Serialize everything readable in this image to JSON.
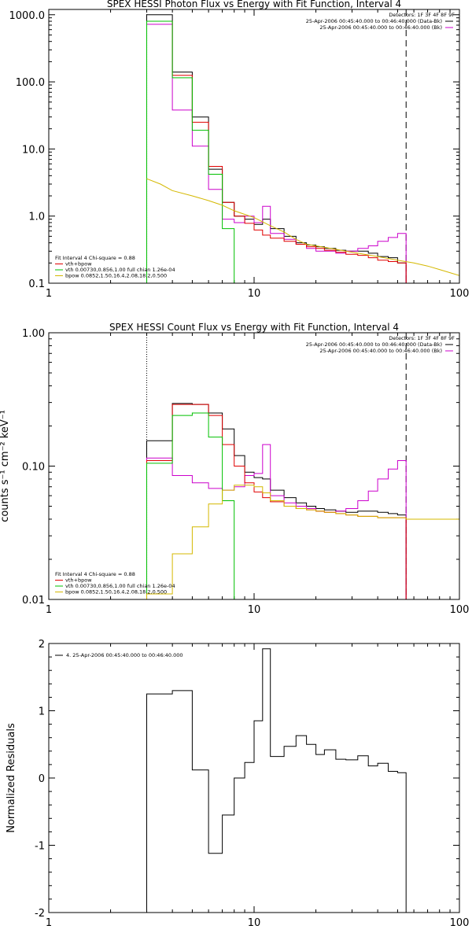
{
  "colors": {
    "data": "#000000",
    "total_fit": "#e00000",
    "vth": "#00c000",
    "bpow": "#d4b800",
    "background": "#cc00cc"
  },
  "detectors_label": "Detectors: 1F 3F 4F 8F 9F",
  "data_legend": [
    {
      "text": "25-Apr-2006 00:45:40.000 to 00:46:40.000 (Data-Bk)",
      "color": "#000000"
    },
    {
      "text": "25-Apr-2006 00:45:40.000 to 00:46:40.000 (Bk)",
      "color": "#cc00cc"
    }
  ],
  "fit_legend": [
    {
      "text": "Fit Interval 4    Chi-square = 0.88",
      "color": "#000000"
    },
    {
      "text": "vth+bpow",
      "color": "#e00000"
    },
    {
      "text": "vth 0.00730,0.856,1.00   full chian 1.26e-04",
      "color": "#00c000"
    },
    {
      "text": "bpow 0.0852,1.50,16.4,2.08,18.2,0.500",
      "color": "#d4b800"
    }
  ],
  "chart_data": [
    {
      "type": "line",
      "title": "SPEX HESSI Photon Flux vs Energy with Fit Function, Interval 4",
      "xscale": "log",
      "yscale": "log",
      "xlim": [
        1,
        100
      ],
      "ylim": [
        0.1,
        1200
      ],
      "xticks": [
        {
          "v": 1,
          "l": "1"
        },
        {
          "v": 10,
          "l": "10"
        },
        {
          "v": 100,
          "l": "100"
        }
      ],
      "yticks": [
        {
          "v": 0.1,
          "l": "0.1"
        },
        {
          "v": 1,
          "l": "1.0"
        },
        {
          "v": 10,
          "l": "10.0"
        },
        {
          "v": 100,
          "l": "100.0"
        },
        {
          "v": 1000,
          "l": "1000.0"
        }
      ],
      "ylabel": "",
      "edges": [
        3,
        4,
        5,
        6,
        7,
        8,
        9,
        10,
        11,
        12,
        14,
        16,
        18,
        20,
        22,
        25,
        28,
        32,
        36,
        40,
        45,
        50,
        55
      ],
      "vlines": [
        {
          "x": 3,
          "style": "dotted"
        },
        {
          "x": 55,
          "style": "dashed"
        }
      ],
      "series": [
        {
          "name": "Data-Bk",
          "color": "#000000",
          "kind": "step",
          "values": [
            1000,
            140,
            30,
            5,
            1.6,
            1.0,
            0.9,
            0.75,
            0.9,
            0.65,
            0.5,
            0.4,
            0.37,
            0.35,
            0.33,
            0.31,
            0.3,
            0.3,
            0.28,
            0.25,
            0.24,
            0.2
          ]
        },
        {
          "name": "Bk",
          "color": "#cc00cc",
          "kind": "step",
          "values": [
            720,
            38,
            11,
            2.5,
            0.9,
            0.8,
            1.0,
            0.8,
            1.4,
            0.55,
            0.45,
            0.38,
            0.33,
            0.3,
            0.3,
            0.28,
            0.3,
            0.33,
            0.36,
            0.42,
            0.48,
            0.55
          ]
        },
        {
          "name": "vth+bpow",
          "color": "#e00000",
          "kind": "step",
          "values": [
            800,
            125,
            25,
            5.5,
            1.6,
            1.0,
            0.78,
            0.62,
            0.52,
            0.47,
            0.42,
            0.38,
            0.35,
            0.33,
            0.31,
            0.29,
            0.27,
            0.26,
            0.24,
            0.22,
            0.21,
            0.2
          ]
        },
        {
          "name": "vth",
          "color": "#00c000",
          "kind": "step",
          "values": [
            800,
            115,
            19,
            4.2,
            0.65,
            0.1
          ]
        },
        {
          "name": "bpow",
          "color": "#d4b800",
          "kind": "curve",
          "x": [
            3,
            3.5,
            4,
            5,
            6,
            7,
            8,
            10,
            12,
            14,
            16,
            18,
            20,
            25,
            30,
            40,
            50,
            60,
            70,
            80,
            100
          ],
          "values": [
            3.6,
            3.0,
            2.4,
            2.0,
            1.7,
            1.45,
            1.2,
            0.95,
            0.72,
            0.58,
            0.45,
            0.38,
            0.36,
            0.32,
            0.29,
            0.25,
            0.22,
            0.2,
            0.18,
            0.16,
            0.13
          ]
        }
      ]
    },
    {
      "type": "line",
      "title": "SPEX HESSI Count Flux vs Energy with Fit Function, Interval 4",
      "xscale": "log",
      "yscale": "log",
      "xlim": [
        1,
        100
      ],
      "ylim": [
        0.01,
        1.0
      ],
      "xticks": [
        {
          "v": 1,
          "l": "1"
        },
        {
          "v": 10,
          "l": "10"
        },
        {
          "v": 100,
          "l": "100"
        }
      ],
      "yticks": [
        {
          "v": 0.01,
          "l": "0.01"
        },
        {
          "v": 0.1,
          "l": "0.10"
        },
        {
          "v": 1,
          "l": "1.00"
        }
      ],
      "ylabel": "counts s⁻¹ cm⁻² keV⁻¹",
      "edges": [
        3,
        4,
        5,
        6,
        7,
        8,
        9,
        10,
        11,
        12,
        14,
        16,
        18,
        20,
        22,
        25,
        28,
        32,
        36,
        40,
        45,
        50,
        55
      ],
      "vlines": [
        {
          "x": 3,
          "style": "dotted"
        },
        {
          "x": 55,
          "style": "dashed"
        }
      ],
      "series": [
        {
          "name": "Data-Bk",
          "color": "#000000",
          "kind": "step",
          "values": [
            0.155,
            0.295,
            0.29,
            0.25,
            0.19,
            0.12,
            0.09,
            0.082,
            0.08,
            0.066,
            0.058,
            0.053,
            0.05,
            0.048,
            0.047,
            0.046,
            0.045,
            0.046,
            0.046,
            0.045,
            0.044,
            0.043
          ]
        },
        {
          "name": "Bk",
          "color": "#cc00cc",
          "kind": "step",
          "values": [
            0.115,
            0.085,
            0.075,
            0.068,
            0.066,
            0.07,
            0.085,
            0.088,
            0.145,
            0.06,
            0.053,
            0.05,
            0.048,
            0.046,
            0.045,
            0.046,
            0.048,
            0.055,
            0.065,
            0.08,
            0.095,
            0.11
          ]
        },
        {
          "name": "vth+bpow",
          "color": "#e00000",
          "kind": "step",
          "values": [
            0.11,
            0.29,
            0.29,
            0.24,
            0.145,
            0.1,
            0.075,
            0.064,
            0.058,
            0.054,
            0.05,
            0.048,
            0.047,
            0.046,
            0.045,
            0.044,
            0.043,
            0.042,
            0.042,
            0.041,
            0.041,
            0.041
          ]
        },
        {
          "name": "vth",
          "color": "#00c000",
          "kind": "step",
          "values": [
            0.105,
            0.24,
            0.25,
            0.165,
            0.055,
            0.008
          ]
        },
        {
          "name": "bpow",
          "color": "#d4b800",
          "kind": "step",
          "values": [
            0.011,
            0.022,
            0.035,
            0.052,
            0.066,
            0.072,
            0.072,
            0.07,
            0.063,
            0.055,
            0.05,
            0.048,
            0.047,
            0.046,
            0.045,
            0.044,
            0.043,
            0.042,
            0.042,
            0.041,
            0.041,
            0.041
          ],
          "extend_to": 100,
          "extend_value": 0.04
        }
      ]
    },
    {
      "type": "line",
      "title": "",
      "xscale": "log",
      "yscale": "linear",
      "xlim": [
        1,
        100
      ],
      "ylim": [
        -2,
        2
      ],
      "xticks": [
        {
          "v": 1,
          "l": "1"
        },
        {
          "v": 10,
          "l": "10"
        },
        {
          "v": 100,
          "l": "100"
        }
      ],
      "yticks": [
        {
          "v": -2,
          "l": "-2"
        },
        {
          "v": -1,
          "l": "-1"
        },
        {
          "v": 0,
          "l": "0"
        },
        {
          "v": 1,
          "l": "1"
        },
        {
          "v": 2,
          "l": "2"
        }
      ],
      "ylabel": "Normalized Residuals",
      "legend": "4. 25-Apr-2006 00:45:40.000 to 00:46:40.000",
      "edges": [
        3,
        4,
        5,
        6,
        7,
        8,
        9,
        10,
        11,
        12,
        14,
        16,
        18,
        20,
        22,
        25,
        28,
        32,
        36,
        40,
        45,
        50,
        55
      ],
      "vlines": [],
      "series": [
        {
          "name": "residuals",
          "color": "#000000",
          "kind": "step",
          "drop_ends": true,
          "values": [
            1.25,
            1.3,
            0.12,
            -1.12,
            -0.55,
            0.0,
            0.23,
            0.85,
            1.92,
            0.32,
            0.47,
            0.63,
            0.5,
            0.35,
            0.42,
            0.28,
            0.27,
            0.33,
            0.18,
            0.22,
            0.1,
            0.08
          ]
        }
      ]
    }
  ]
}
